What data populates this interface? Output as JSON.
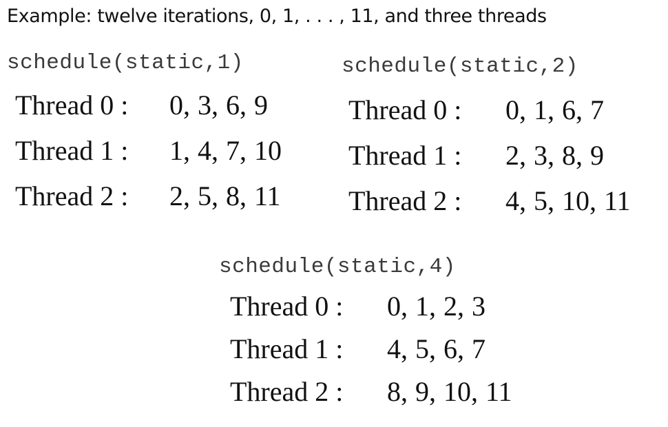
{
  "title": "Example:  twelve iterations, 0, 1, . . . , 11, and three threads",
  "schedules": [
    {
      "heading": "schedule(static,1)",
      "threads": [
        {
          "label": "Thread 0 :",
          "values": "0, 3, 6, 9"
        },
        {
          "label": "Thread 1 :",
          "values": "1, 4, 7, 10"
        },
        {
          "label": "Thread 2 :",
          "values": "2, 5, 8, 11"
        }
      ]
    },
    {
      "heading": "schedule(static,2)",
      "threads": [
        {
          "label": "Thread 0 :",
          "values": "0, 1, 6, 7"
        },
        {
          "label": "Thread 1 :",
          "values": "2, 3, 8, 9"
        },
        {
          "label": "Thread 2 :",
          "values": "4, 5, 10, 11"
        }
      ]
    },
    {
      "heading": "schedule(static,4)",
      "threads": [
        {
          "label": "Thread 0 :",
          "values": "0, 1, 2, 3"
        },
        {
          "label": "Thread 1 :",
          "values": "4, 5, 6, 7"
        },
        {
          "label": "Thread 2 :",
          "values": "8, 9, 10, 11"
        }
      ]
    }
  ]
}
